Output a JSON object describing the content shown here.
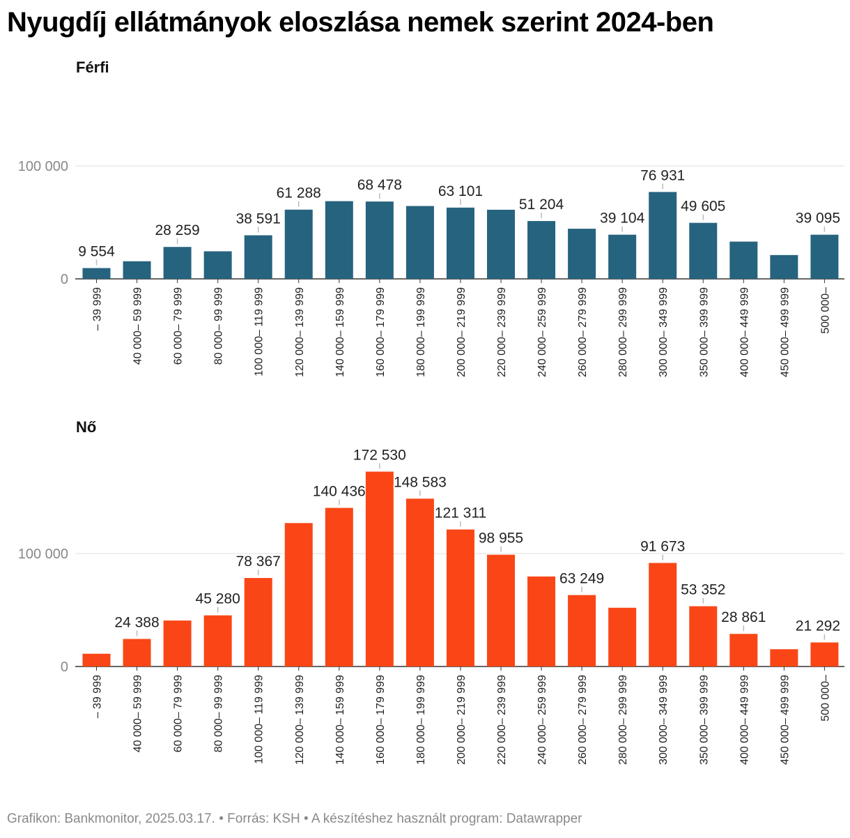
{
  "title": "Nyugdíj ellátmányok eloszlása nemek szerint 2024-ben",
  "footer": {
    "credit": "Grafikon: Bankmonitor, 2025.03.17.",
    "separator": " • ",
    "source": "Forrás: KSH",
    "tool": "A készítéshez használt program: Datawrapper"
  },
  "chart_data": [
    {
      "type": "bar",
      "title": "Férfi",
      "color": "#26637f",
      "categories": [
        "– 39 999",
        "40 000– 59 999",
        "60 000– 79 999",
        "80 000– 99 999",
        "100 000– 119 999",
        "120 000– 139 999",
        "140 000– 159 999",
        "160 000– 179 999",
        "180 000– 199 999",
        "200 000– 219 999",
        "220 000– 239 999",
        "240 000– 259 999",
        "260 000– 279 999",
        "280 000– 299 999",
        "300 000– 349 999",
        "350 000– 399 999",
        "400 000– 449 999",
        "450 000– 499 999",
        "500 000–"
      ],
      "values": [
        9554,
        15600,
        28259,
        24400,
        38591,
        61288,
        68800,
        68478,
        64500,
        63101,
        61200,
        51204,
        44400,
        39104,
        76931,
        49605,
        33000,
        21100,
        39095
      ],
      "labels": [
        "9 554",
        "",
        "28 259",
        "",
        "38 591",
        "61 288",
        "",
        "68 478",
        "",
        "63 101",
        "",
        "51 204",
        "",
        "39 104",
        "76 931",
        "49 605",
        "",
        "",
        "39 095"
      ],
      "yticks": [
        0,
        100000
      ],
      "ytick_labels": [
        "0",
        "100 000"
      ],
      "ylim": [
        0,
        100000
      ]
    },
    {
      "type": "bar",
      "title": "Nő",
      "color": "#fa4616",
      "categories": [
        "– 39 999",
        "40 000– 59 999",
        "60 000– 79 999",
        "80 000– 99 999",
        "100 000– 119 999",
        "120 000– 139 999",
        "140 000– 159 999",
        "160 000– 179 999",
        "180 000– 199 999",
        "200 000– 219 999",
        "220 000– 239 999",
        "240 000– 259 999",
        "260 000– 279 999",
        "280 000– 299 999",
        "300 000– 349 999",
        "350 000– 399 999",
        "400 000– 449 999",
        "450 000– 499 999",
        "500 000–"
      ],
      "values": [
        11300,
        24388,
        40700,
        45280,
        78367,
        127000,
        140436,
        172530,
        148583,
        121311,
        98955,
        79700,
        63249,
        52000,
        91673,
        53352,
        28861,
        15300,
        21292
      ],
      "labels": [
        "",
        "24 388",
        "",
        "45 280",
        "78 367",
        "",
        "140 436",
        "172 530",
        "148 583",
        "121 311",
        "98 955",
        "",
        "63 249",
        "",
        "91 673",
        "53 352",
        "28 861",
        "",
        "21 292"
      ],
      "yticks": [
        0,
        100000
      ],
      "ytick_labels": [
        "0",
        "100 000"
      ],
      "ylim": [
        0,
        172530
      ]
    }
  ]
}
